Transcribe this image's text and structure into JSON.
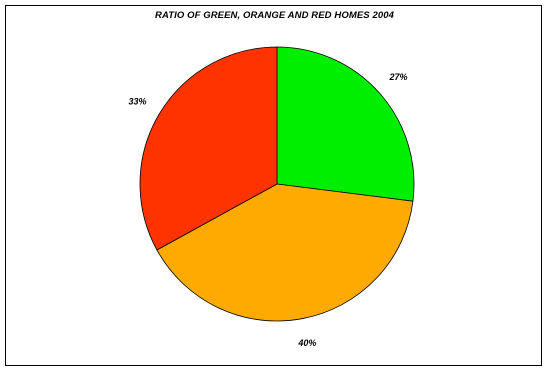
{
  "chart_data": {
    "type": "pie",
    "title": "RATIO OF GREEN, ORANGE AND RED HOMES 2004",
    "slices": [
      {
        "label": "27%",
        "value": 27,
        "color": "#00ee00"
      },
      {
        "label": "40%",
        "value": 40,
        "color": "#ffaa00"
      },
      {
        "label": "33%",
        "value": 33,
        "color": "#ff3300"
      }
    ],
    "start_angle_deg": 90,
    "direction": "clockwise",
    "legend": "none"
  }
}
